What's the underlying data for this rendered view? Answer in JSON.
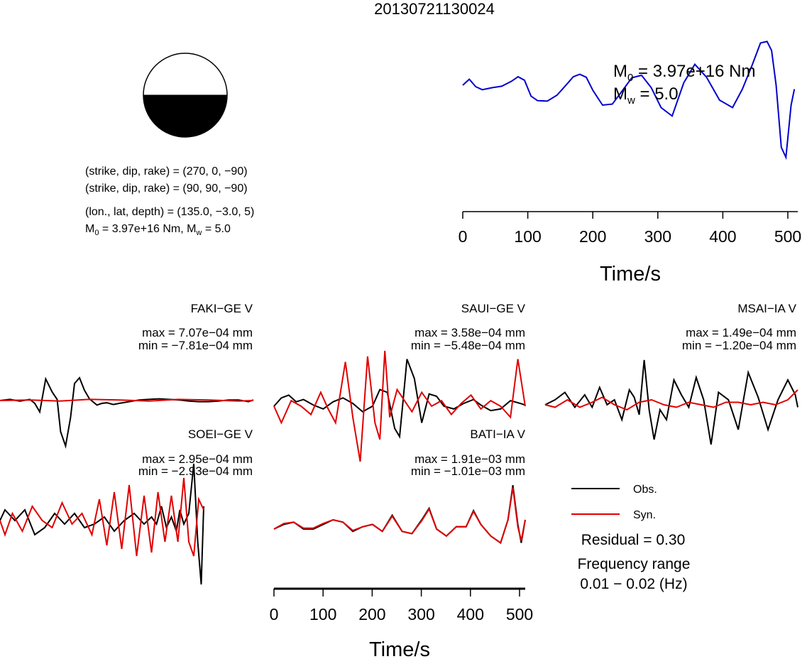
{
  "title": "20130721130024",
  "beachball": {
    "caption": {
      "line1": "(strike, dip, rake) = (270, 0, −90)",
      "line2": "(strike, dip, rake) = (90, 90, −90)",
      "line3": "(lon., lat, depth) = (135.0, −3.0, 5)",
      "line4_m0": "M",
      "line4_m0_sub": "0",
      "line4_mid": " = 3.97e+16 Nm, M",
      "line4_mw_sub": "w",
      "line4_end": " = 5.0"
    }
  },
  "stf": {
    "m0_prefix": "M",
    "m0_sub": "0",
    "m0_value": " = 3.97e+16 Nm",
    "mw_prefix": "M",
    "mw_sub": "w",
    "mw_value": " = 5.0",
    "xlabel": "Time/s",
    "xticks": [
      "0",
      "100",
      "200",
      "300",
      "400",
      "500"
    ]
  },
  "waveform_axis": {
    "xlabel": "Time/s",
    "xticks": [
      "0",
      "100",
      "200",
      "300",
      "400",
      "500"
    ]
  },
  "legend": {
    "obs": "Obs.",
    "syn": "Syn.",
    "residual": "Residual = 0.30",
    "freq_label": "Frequency range",
    "freq_value": "0.01 − 0.02 (Hz)"
  },
  "colors": {
    "obs": "#000000",
    "syn": "#e00000",
    "stf": "#0000cc"
  },
  "chart_data": [
    {
      "type": "line",
      "name": "source time function",
      "xlabel": "Time/s",
      "xlim": [
        0,
        510
      ],
      "x": [
        0,
        10,
        20,
        30,
        45,
        60,
        75,
        85,
        95,
        105,
        115,
        130,
        145,
        160,
        170,
        180,
        190,
        200,
        215,
        230,
        245,
        260,
        275,
        290,
        305,
        322,
        340,
        357,
        375,
        395,
        415,
        430,
        445,
        458,
        468,
        475,
        482,
        490,
        497,
        505,
        510
      ],
      "y": [
        0.5,
        0.62,
        0.47,
        0.41,
        0.45,
        0.48,
        0.58,
        0.67,
        0.6,
        0.28,
        0.19,
        0.18,
        0.3,
        0.52,
        0.67,
        0.72,
        0.66,
        0.4,
        0.1,
        0.12,
        0.38,
        0.65,
        0.7,
        0.45,
        0.05,
        -0.12,
        0.55,
        0.92,
        0.66,
        0.2,
        0.05,
        0.42,
        0.9,
        1.35,
        1.38,
        1.2,
        0.5,
        -0.75,
        -0.95,
        0.1,
        0.42
      ]
    },
    {
      "type": "line",
      "station": "FAKI−GE V",
      "max": "max = 7.07e−04 mm",
      "min": "min = −7.81e−04 mm",
      "xlim": [
        0,
        510
      ],
      "series": [
        {
          "name": "Obs.",
          "x": [
            0,
            20,
            40,
            60,
            70,
            80,
            92,
            105,
            115,
            122,
            132,
            142,
            150,
            160,
            170,
            180,
            195,
            205,
            215,
            228,
            240,
            260,
            280,
            300,
            320,
            340,
            360,
            380,
            400,
            420,
            440,
            460,
            480,
            500,
            510
          ],
          "y": [
            0,
            0.02,
            -0.01,
            0.02,
            -0.05,
            -0.2,
            0.38,
            0.15,
            0.02,
            -0.55,
            -0.8,
            -0.3,
            0.3,
            0.4,
            0.18,
            0.03,
            -0.08,
            -0.05,
            -0.04,
            -0.07,
            -0.05,
            -0.02,
            0.01,
            0.02,
            0.03,
            0.02,
            0.01,
            -0.01,
            -0.02,
            -0.02,
            -0.01,
            0.01,
            0.01,
            -0.02,
            0.01
          ]
        },
        {
          "name": "Syn.",
          "x": [
            0,
            60,
            120,
            180,
            240,
            300,
            360,
            420,
            480,
            510
          ],
          "y": [
            0,
            0.01,
            -0.01,
            0.02,
            0.01,
            -0.01,
            0.02,
            0.01,
            -0.01,
            0.0
          ]
        }
      ]
    },
    {
      "type": "line",
      "station": "SAUI−GE V",
      "max": "max = 3.58e−04 mm",
      "min": "min = −5.48e−04 mm",
      "xlim": [
        0,
        510
      ],
      "series": [
        {
          "name": "Obs.",
          "x": [
            0,
            15,
            30,
            45,
            60,
            80,
            100,
            120,
            140,
            160,
            180,
            200,
            215,
            230,
            245,
            255,
            262,
            270,
            285,
            300,
            315,
            330,
            345,
            365,
            385,
            405,
            420,
            440,
            460,
            480,
            500,
            510
          ],
          "y": [
            0.0,
            0.15,
            0.2,
            0.08,
            0.12,
            0.02,
            -0.05,
            0.08,
            0.15,
            0.05,
            -0.1,
            0.0,
            0.3,
            0.25,
            -0.4,
            -0.55,
            0.1,
            0.85,
            0.5,
            -0.3,
            0.22,
            0.18,
            0.0,
            -0.05,
            0.05,
            0.12,
            0.02,
            -0.08,
            -0.05,
            0.1,
            0.05,
            0.02
          ]
        },
        {
          "name": "Syn.",
          "x": [
            0,
            15,
            35,
            55,
            75,
            95,
            110,
            125,
            145,
            160,
            175,
            190,
            205,
            215,
            225,
            235,
            250,
            265,
            280,
            300,
            320,
            340,
            360,
            380,
            400,
            420,
            440,
            460,
            480,
            495,
            510
          ],
          "y": [
            0.0,
            -0.3,
            0.1,
            0.0,
            -0.15,
            0.25,
            -0.05,
            -0.3,
            0.8,
            -0.2,
            -1.0,
            0.9,
            -0.3,
            -0.6,
            1.0,
            -0.2,
            0.3,
            0.1,
            -0.1,
            0.25,
            0.0,
            0.1,
            -0.15,
            0.05,
            0.2,
            -0.05,
            0.1,
            0.0,
            -0.2,
            0.85,
            0.0
          ]
        }
      ]
    },
    {
      "type": "line",
      "station": "MSAI−IA V",
      "max": "max = 1.49e−04 mm",
      "min": "min = −1.20e−04 mm",
      "xlim": [
        0,
        510
      ],
      "series": [
        {
          "name": "Obs.",
          "x": [
            0,
            20,
            40,
            60,
            80,
            95,
            110,
            125,
            140,
            155,
            170,
            180,
            190,
            200,
            210,
            220,
            232,
            245,
            260,
            275,
            290,
            305,
            320,
            335,
            350,
            370,
            390,
            410,
            430,
            450,
            470,
            490,
            505,
            510
          ],
          "y": [
            0,
            0.1,
            0.25,
            -0.05,
            0.2,
            -0.05,
            0.35,
            0.0,
            0.1,
            -0.3,
            0.3,
            0.15,
            -0.2,
            0.9,
            -0.1,
            -0.7,
            -0.1,
            -0.3,
            0.5,
            0.2,
            -0.05,
            0.55,
            0.1,
            -0.8,
            0.25,
            0.1,
            -0.5,
            0.65,
            0.15,
            -0.5,
            0.1,
            0.5,
            0.2,
            -0.05
          ]
        },
        {
          "name": "Syn.",
          "x": [
            0,
            20,
            45,
            70,
            95,
            115,
            140,
            165,
            190,
            215,
            240,
            265,
            290,
            315,
            340,
            365,
            390,
            415,
            440,
            465,
            490,
            510
          ],
          "y": [
            0.0,
            -0.05,
            0.1,
            -0.05,
            0.05,
            0.15,
            0.0,
            -0.1,
            0.05,
            0.1,
            0.0,
            -0.05,
            0.05,
            0.0,
            -0.05,
            0.05,
            0.05,
            0.0,
            0.05,
            0.0,
            0.1,
            0.3
          ]
        }
      ]
    },
    {
      "type": "line",
      "station": "SOEI−GE V",
      "max": "max = 2.95e−04 mm",
      "min": "min = −2.93e−04 mm",
      "xlim": [
        0,
        510
      ],
      "series": [
        {
          "name": "Obs.",
          "x": [
            0,
            10,
            30,
            50,
            70,
            90,
            110,
            130,
            150,
            170,
            190,
            210,
            230,
            250,
            270,
            290,
            305,
            315,
            325,
            335,
            345,
            355,
            362,
            370,
            380,
            390,
            398,
            405,
            410
          ],
          "y": [
            0,
            0.15,
            0.0,
            0.15,
            -0.2,
            -0.1,
            0.1,
            -0.05,
            0.1,
            -0.1,
            -0.05,
            0.05,
            -0.15,
            0.0,
            0.1,
            -0.05,
            0.05,
            -0.05,
            0.2,
            -0.1,
            0.05,
            -0.15,
            0.15,
            -0.05,
            0.1,
            0.8,
            -0.3,
            -0.9,
            0.2
          ]
        },
        {
          "name": "Syn.",
          "x": [
            0,
            10,
            25,
            45,
            65,
            85,
            105,
            125,
            145,
            165,
            185,
            200,
            215,
            230,
            245,
            260,
            275,
            290,
            305,
            318,
            332,
            345,
            358,
            370,
            380,
            390,
            400,
            410
          ],
          "y": [
            0,
            -0.2,
            0.1,
            -0.15,
            0.2,
            0.0,
            -0.1,
            0.25,
            -0.05,
            0.1,
            -0.2,
            0.3,
            -0.35,
            0.4,
            -0.4,
            0.5,
            -0.5,
            0.35,
            -0.45,
            0.4,
            -0.3,
            0.35,
            -0.3,
            0.6,
            -0.3,
            -0.5,
            0.3,
            0.15
          ]
        }
      ]
    },
    {
      "type": "line",
      "station": "BATI−IA V",
      "max": "max = 1.91e−03 mm",
      "min": "min = −1.01e−03 mm",
      "xlim": [
        0,
        510
      ],
      "series": [
        {
          "name": "Obs.",
          "x": [
            0,
            20,
            40,
            60,
            80,
            100,
            120,
            140,
            160,
            180,
            200,
            220,
            240,
            260,
            280,
            300,
            315,
            330,
            350,
            370,
            390,
            405,
            420,
            440,
            460,
            475,
            485,
            495,
            502,
            510
          ],
          "y": [
            0,
            0.1,
            0.15,
            0.0,
            0.0,
            0.1,
            0.2,
            0.15,
            -0.05,
            0.05,
            0.1,
            -0.05,
            0.3,
            -0.05,
            -0.1,
            0.2,
            0.45,
            0.0,
            -0.15,
            0.05,
            0.05,
            0.4,
            0.1,
            -0.15,
            -0.3,
            0.2,
            0.95,
            0.1,
            -0.3,
            0.2
          ]
        },
        {
          "name": "Syn.",
          "x": [
            0,
            20,
            40,
            60,
            80,
            100,
            120,
            140,
            160,
            180,
            200,
            220,
            240,
            260,
            280,
            300,
            315,
            330,
            350,
            370,
            390,
            405,
            420,
            440,
            460,
            475,
            485,
            495,
            502,
            510
          ],
          "y": [
            0,
            0.12,
            0.15,
            0.02,
            0.02,
            0.12,
            0.2,
            0.15,
            -0.03,
            0.05,
            0.1,
            -0.05,
            0.28,
            -0.05,
            -0.1,
            0.18,
            0.43,
            0.0,
            -0.15,
            0.05,
            0.05,
            0.38,
            0.1,
            -0.15,
            -0.3,
            0.2,
            0.9,
            0.05,
            -0.25,
            0.2
          ]
        }
      ]
    }
  ]
}
